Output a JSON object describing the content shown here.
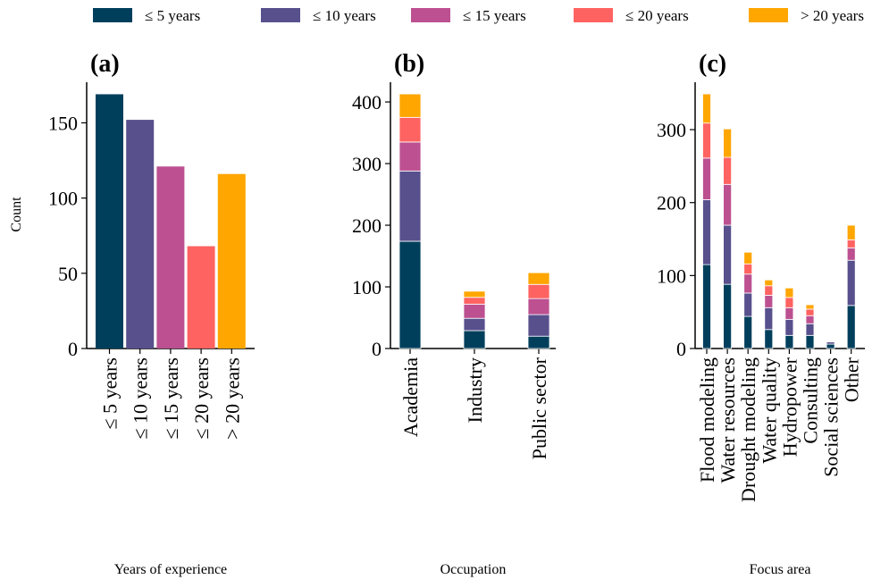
{
  "chart_data": [
    {
      "type": "bar",
      "title": "(a)",
      "x_label": "Years of experience",
      "y_label": "Count",
      "categories": [
        "≤ 5 years",
        "≤ 10 years",
        "≤ 15 years",
        "≤ 20 years",
        "> 20 years"
      ],
      "values": [
        169,
        152,
        121,
        68,
        116
      ],
      "colors": [
        "#003f5c",
        "#58508d",
        "#bc5090",
        "#ff6361",
        "#ffa600"
      ],
      "ylim": [
        0,
        177
      ],
      "yticks": [
        0,
        50,
        100,
        150
      ]
    },
    {
      "type": "stacked_bar",
      "title": "(b)",
      "x_label": "Occupation",
      "legend": "upper center",
      "categories": [
        "Academia",
        "Industry",
        "Public sector"
      ],
      "series": [
        {
          "name": "≤ 5 years",
          "color": "#003f5c",
          "values": [
            174,
            29,
            20
          ]
        },
        {
          "name": "≤ 10 years",
          "color": "#58508d",
          "values": [
            114,
            20,
            35
          ]
        },
        {
          "name": "≤ 15 years",
          "color": "#bc5090",
          "values": [
            47,
            23,
            26
          ]
        },
        {
          "name": "≤ 20 years",
          "color": "#ff6361",
          "values": [
            40,
            11,
            23
          ]
        },
        {
          "name": "> 20 years",
          "color": "#ffa600",
          "values": [
            38,
            10,
            19
          ]
        }
      ],
      "ylim": [
        0,
        432
      ],
      "yticks": [
        0,
        100,
        200,
        300,
        400
      ]
    },
    {
      "type": "stacked_bar",
      "title": "(c)",
      "x_label": "Focus area",
      "categories": [
        "Flood modeling",
        "Water resources",
        "Drought modeling",
        "Water quality",
        "Hydropower",
        "Consulting",
        "Social sciences",
        "Other"
      ],
      "series": [
        {
          "name": "≤ 5 years",
          "color": "#003f5c",
          "values": [
            115,
            88,
            44,
            26,
            18,
            18,
            6,
            59
          ]
        },
        {
          "name": "≤ 10 years",
          "color": "#58508d",
          "values": [
            89,
            81,
            32,
            30,
            22,
            16,
            3,
            62
          ]
        },
        {
          "name": "≤ 15 years",
          "color": "#bc5090",
          "values": [
            57,
            56,
            26,
            17,
            16,
            11,
            1,
            17
          ]
        },
        {
          "name": "≤ 20 years",
          "color": "#ff6361",
          "values": [
            48,
            37,
            14,
            13,
            14,
            9,
            1,
            11
          ]
        },
        {
          "name": "> 20 years",
          "color": "#ffa600",
          "values": [
            40,
            39,
            16,
            8,
            13,
            6,
            0,
            20
          ]
        }
      ],
      "ylim": [
        0,
        365
      ],
      "yticks": [
        0,
        100,
        200,
        300
      ]
    }
  ]
}
